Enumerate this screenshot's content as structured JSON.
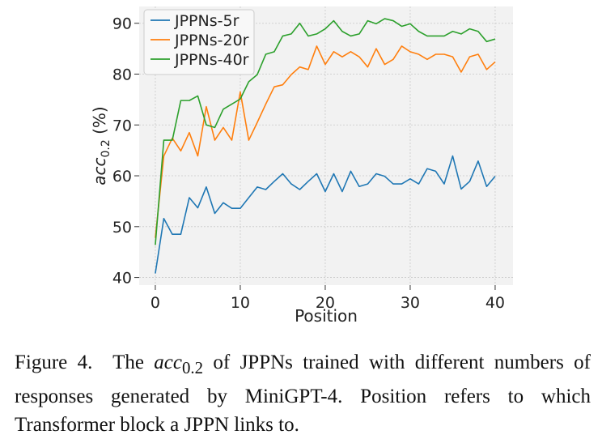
{
  "chart_data": {
    "type": "line",
    "xlabel": "Position",
    "ylabel_main": "acc",
    "ylabel_sub": "0.2",
    "ylabel_suffix": " (%)",
    "xlim": [
      -1.9,
      42.1
    ],
    "ylim": [
      38.5,
      93.3
    ],
    "xticks": [
      0,
      10,
      20,
      30,
      40
    ],
    "yticks": [
      40,
      50,
      60,
      70,
      80,
      90
    ],
    "grid": true,
    "legend_position": "top-left",
    "x": [
      0,
      1,
      2,
      3,
      4,
      5,
      6,
      7,
      8,
      9,
      10,
      11,
      12,
      13,
      14,
      15,
      16,
      17,
      18,
      19,
      20,
      21,
      22,
      23,
      24,
      25,
      26,
      27,
      28,
      29,
      30,
      31,
      32,
      33,
      34,
      35,
      36,
      37,
      38,
      39,
      40
    ],
    "series": [
      {
        "name": "JPPNs-5r",
        "color": "#1f77b4",
        "values": [
          40.8,
          51.6,
          48.5,
          48.5,
          55.7,
          53.7,
          57.8,
          52.6,
          54.7,
          53.6,
          53.6,
          55.7,
          57.8,
          57.3,
          58.9,
          60.4,
          58.4,
          57.3,
          58.9,
          60.4,
          56.9,
          60.4,
          56.9,
          60.9,
          57.9,
          58.4,
          60.4,
          59.9,
          58.4,
          58.4,
          59.4,
          58.4,
          61.4,
          60.9,
          58.4,
          63.9,
          57.4,
          58.9,
          62.9,
          57.9,
          59.9
        ]
      },
      {
        "name": "JPPNs-20r",
        "color": "#ff7f0e",
        "values": [
          47.8,
          63.9,
          67.4,
          64.9,
          68.5,
          63.9,
          73.6,
          67.0,
          69.5,
          67.0,
          76.5,
          67.0,
          70.5,
          74.1,
          77.5,
          77.9,
          79.9,
          81.4,
          80.9,
          85.5,
          81.9,
          84.4,
          83.4,
          84.4,
          83.4,
          81.4,
          85.0,
          81.9,
          82.9,
          85.5,
          84.4,
          83.9,
          82.9,
          83.9,
          83.9,
          83.4,
          80.4,
          83.4,
          83.9,
          80.9,
          82.4
        ]
      },
      {
        "name": "JPPNs-40r",
        "color": "#2ca02c",
        "values": [
          46.4,
          67.0,
          67.0,
          74.8,
          74.8,
          75.7,
          70.0,
          69.5,
          73.1,
          74.1,
          75.1,
          78.5,
          79.9,
          83.9,
          84.4,
          87.5,
          87.9,
          90.0,
          87.5,
          87.9,
          88.9,
          90.5,
          88.4,
          87.5,
          87.9,
          90.5,
          89.9,
          90.9,
          90.5,
          89.4,
          89.9,
          88.4,
          87.5,
          87.5,
          87.5,
          88.4,
          87.9,
          88.9,
          88.4,
          86.4,
          86.9
        ]
      }
    ]
  },
  "caption": {
    "figure_label": "Figure 4.",
    "text_pre": "The ",
    "metric_main": "acc",
    "metric_sub": "0.2",
    "text_post": " of JPPNs trained with different numbers of responses generated by MiniGPT-4. Position refers to which Transformer block a JPPN links to."
  }
}
